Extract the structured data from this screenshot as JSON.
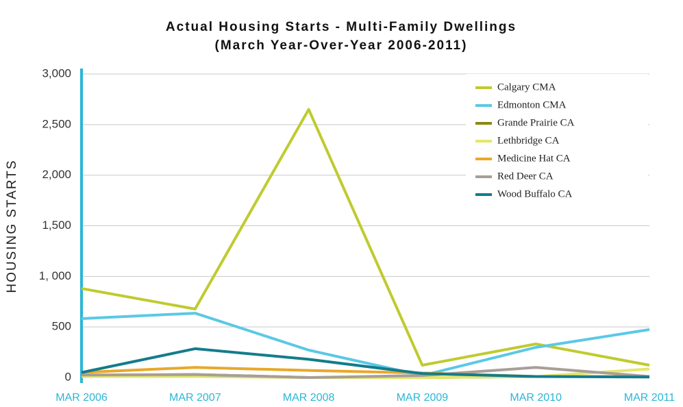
{
  "chart_data": {
    "type": "line",
    "title": "Actual Housing Starts - Multi-Family Dwellings",
    "subtitle": "(March Year-Over-Year 2006-2011)",
    "y_label": "HOUSING STARTS",
    "categories": [
      "MAR 2006",
      "MAR 2007",
      "MAR 2008",
      "MAR 2009",
      "MAR 2010",
      "MAR 2011"
    ],
    "ylim": [
      0,
      3000
    ],
    "yticks": [
      0,
      500,
      {
        "value": 1000,
        "label": "1, 000"
      },
      {
        "value": 1500,
        "label": "1,500"
      },
      {
        "value": 2000,
        "label": "2,000"
      },
      {
        "value": 2500,
        "label": "2,500"
      },
      {
        "value": 3000,
        "label": "3,000"
      }
    ],
    "grid": true,
    "legend": "upper right",
    "series": [
      {
        "name": "Calgary CMA",
        "color": "#bfcb2e",
        "values": [
          880,
          677,
          2650,
          122,
          332,
          122
        ]
      },
      {
        "name": "Edmonton CMA",
        "color": "#5bc8e6",
        "values": [
          582,
          636,
          271,
          20,
          298,
          474
        ]
      },
      {
        "name": "Grande Prairie CA",
        "color": "#8a8a10",
        "values": [
          20,
          30,
          0,
          0,
          10,
          10
        ]
      },
      {
        "name": "Lethbridge CA",
        "color": "#e0e86a",
        "values": [
          10,
          10,
          0,
          0,
          10,
          85
        ]
      },
      {
        "name": "Medicine Hat CA",
        "color": "#e8a82a",
        "values": [
          50,
          100,
          70,
          45,
          10,
          10
        ]
      },
      {
        "name": "Red Deer CA",
        "color": "#a89e98",
        "values": [
          25,
          30,
          0,
          20,
          100,
          10
        ]
      },
      {
        "name": "Wood Buffalo CA",
        "color": "#137c8c",
        "values": [
          50,
          285,
          180,
          40,
          10,
          5
        ]
      }
    ]
  }
}
